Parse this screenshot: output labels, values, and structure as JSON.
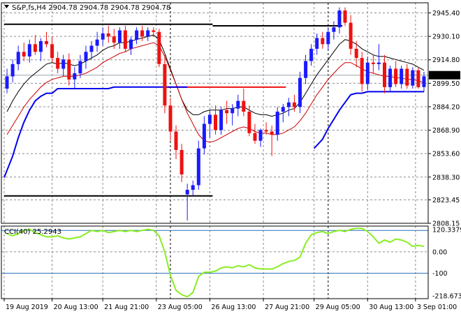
{
  "header": {
    "title": "S&P,fs,H4  2904.78 2904.78 2904.78 2904.78"
  },
  "cci_header": {
    "title": "CCI(40) 25.2943"
  },
  "colors": {
    "bull": "#1a1aff",
    "bear": "#ee1111",
    "grid": "#8c8c8c",
    "upper_ma": "#000000",
    "lower_ma": "#cc0000",
    "support": "#0000ee",
    "cci_line": "#88ee22",
    "cci_levels": "#2a6fb8",
    "hline_black": "#000000",
    "hline_red": "#ee1111"
  },
  "chart_data": [
    {
      "type": "candlestick",
      "title": "S&P,fs,H4  2904.78 2904.78 2904.78 2904.78",
      "ylim": [
        2808.15,
        2952.0
      ],
      "y_ticks": [
        "2945.40",
        "2930.10",
        "2914.80",
        "2899.50",
        "2884.20",
        "2868.90",
        "2853.60",
        "2838.30",
        "2823.45",
        "2808.15"
      ],
      "x_ticks": [
        "19 Aug 2019",
        "20 Aug 13:00",
        "21 Aug 21:00",
        "23 Aug 05:00",
        "26 Aug 13:00",
        "27 Aug 21:00",
        "29 Aug 05:00",
        "30 Aug 13:00",
        "3 Sep 01:00"
      ],
      "current_price": "2904.78",
      "grid": true,
      "candles": [
        [
          2896,
          2909,
          2893,
          2904
        ],
        [
          2904,
          2915,
          2900,
          2912
        ],
        [
          2912,
          2924,
          2908,
          2920
        ],
        [
          2920,
          2926,
          2914,
          2917
        ],
        [
          2917,
          2928,
          2913,
          2925
        ],
        [
          2925,
          2931,
          2918,
          2920
        ],
        [
          2920,
          2929,
          2914,
          2927
        ],
        [
          2927,
          2933,
          2923,
          2925
        ],
        [
          2925,
          2930,
          2913,
          2916
        ],
        [
          2916,
          2920,
          2906,
          2909
        ],
        [
          2909,
          2918,
          2904,
          2915
        ],
        [
          2915,
          2919,
          2898,
          2902
        ],
        [
          2902,
          2910,
          2896,
          2906
        ],
        [
          2906,
          2918,
          2903,
          2914
        ],
        [
          2914,
          2924,
          2909,
          2920
        ],
        [
          2920,
          2927,
          2915,
          2924
        ],
        [
          2924,
          2933,
          2920,
          2928
        ],
        [
          2928,
          2936,
          2924,
          2932
        ],
        [
          2932,
          2937,
          2926,
          2930
        ],
        [
          2930,
          2935,
          2922,
          2926
        ],
        [
          2926,
          2936,
          2922,
          2934
        ],
        [
          2934,
          2937,
          2920,
          2922
        ],
        [
          2922,
          2930,
          2918,
          2928
        ],
        [
          2928,
          2936,
          2925,
          2934
        ],
        [
          2934,
          2937,
          2927,
          2930
        ],
        [
          2930,
          2936,
          2927,
          2934
        ],
        [
          2934,
          2936,
          2930,
          2933
        ],
        [
          2933,
          2935,
          2910,
          2912
        ],
        [
          2912,
          2918,
          2880,
          2885
        ],
        [
          2885,
          2890,
          2862,
          2868
        ],
        [
          2868,
          2872,
          2850,
          2856
        ],
        [
          2856,
          2860,
          2835,
          2840
        ],
        [
          2827,
          2834,
          2810,
          2830
        ],
        [
          2830,
          2836,
          2826,
          2833
        ],
        [
          2833,
          2862,
          2830,
          2857
        ],
        [
          2857,
          2878,
          2853,
          2873
        ],
        [
          2873,
          2882,
          2864,
          2879
        ],
        [
          2879,
          2885,
          2866,
          2869
        ],
        [
          2869,
          2884,
          2866,
          2882
        ],
        [
          2882,
          2888,
          2873,
          2880
        ],
        [
          2880,
          2886,
          2872,
          2883
        ],
        [
          2883,
          2892,
          2878,
          2888
        ],
        [
          2888,
          2896,
          2878,
          2881
        ],
        [
          2881,
          2885,
          2865,
          2867
        ],
        [
          2867,
          2873,
          2860,
          2862
        ],
        [
          2862,
          2870,
          2858,
          2869
        ],
        [
          2869,
          2874,
          2866,
          2868
        ],
        [
          2868,
          2872,
          2852,
          2866
        ],
        [
          2866,
          2884,
          2862,
          2881
        ],
        [
          2881,
          2886,
          2874,
          2884
        ],
        [
          2884,
          2890,
          2878,
          2887
        ],
        [
          2887,
          2892,
          2881,
          2884
        ],
        [
          2884,
          2907,
          2880,
          2903
        ],
        [
          2903,
          2918,
          2899,
          2914
        ],
        [
          2914,
          2925,
          2911,
          2922
        ],
        [
          2922,
          2932,
          2918,
          2929
        ],
        [
          2929,
          2933,
          2922,
          2925
        ],
        [
          2925,
          2936,
          2921,
          2933
        ],
        [
          2933,
          2940,
          2928,
          2936
        ],
        [
          2936,
          2949,
          2932,
          2947
        ],
        [
          2947,
          2949,
          2937,
          2939
        ],
        [
          2939,
          2944,
          2918,
          2922
        ],
        [
          2922,
          2927,
          2910,
          2916
        ],
        [
          2916,
          2920,
          2894,
          2899
        ],
        [
          2899,
          2917,
          2895,
          2913
        ],
        [
          2913,
          2918,
          2906,
          2912
        ],
        [
          2912,
          2925,
          2908,
          2913
        ],
        [
          2913,
          2918,
          2893,
          2897
        ],
        [
          2897,
          2911,
          2894,
          2909
        ],
        [
          2909,
          2914,
          2897,
          2899
        ],
        [
          2899,
          2911,
          2896,
          2909
        ],
        [
          2909,
          2912,
          2896,
          2898
        ],
        [
          2898,
          2910,
          2896,
          2908
        ],
        [
          2908,
          2910,
          2896,
          2897
        ],
        [
          2897,
          2907,
          2894,
          2904
        ]
      ],
      "upper_line": [
        2881,
        2888,
        2894,
        2899,
        2903,
        2906,
        2909,
        2912,
        2913,
        2912,
        2913,
        2912,
        2911,
        2912,
        2914,
        2916,
        2918,
        2921,
        2923,
        2924,
        2926,
        2926,
        2927,
        2928,
        2929,
        2930,
        2931,
        2928,
        2919,
        2909,
        2899,
        2889,
        2882,
        2879,
        2879,
        2881,
        2882,
        2882,
        2882,
        2883,
        2883,
        2884,
        2884,
        2882,
        2880,
        2879,
        2879,
        2878,
        2879,
        2880,
        2882,
        2883,
        2887,
        2893,
        2899,
        2905,
        2910,
        2915,
        2920,
        2925,
        2928,
        2927,
        2925,
        2922,
        2920,
        2918,
        2917,
        2917,
        2916,
        2915,
        2914,
        2913,
        2912,
        2910,
        2908
      ],
      "lower_line": [
        2866,
        2872,
        2878,
        2884,
        2889,
        2893,
        2897,
        2900,
        2902,
        2903,
        2904,
        2904,
        2904,
        2905,
        2906,
        2908,
        2910,
        2913,
        2915,
        2917,
        2919,
        2920,
        2922,
        2923,
        2924,
        2925,
        2926,
        2924,
        2917,
        2908,
        2899,
        2889,
        2880,
        2873,
        2866,
        2862,
        2861,
        2862,
        2864,
        2866,
        2868,
        2870,
        2871,
        2870,
        2868,
        2867,
        2867,
        2866,
        2866,
        2867,
        2869,
        2871,
        2875,
        2880,
        2886,
        2892,
        2897,
        2902,
        2906,
        2910,
        2913,
        2913,
        2911,
        2909,
        2907,
        2906,
        2905,
        2904,
        2904,
        2903,
        2903,
        2902,
        2902,
        2901,
        2900
      ],
      "support_line": [
        2838,
        2852,
        2864,
        2874,
        2882,
        2888,
        2891,
        2893,
        2893,
        2896,
        2896,
        2896,
        2896,
        2896,
        2896,
        2896,
        2896,
        2896,
        2896,
        2897,
        2897,
        2897,
        2897,
        2897,
        2897,
        2897,
        2897,
        2897,
        2897,
        2897,
        2897,
        2897,
        2897,
        null,
        null,
        null,
        null,
        null,
        null,
        null,
        null,
        null,
        null,
        null,
        null,
        null,
        null,
        null,
        null,
        null,
        null,
        null,
        null,
        null,
        null,
        2857,
        2863,
        2870,
        2876,
        2882,
        2887,
        2892,
        2893,
        2893,
        2894,
        2894,
        2894,
        2894,
        2894,
        2894,
        2894,
        2894,
        2894,
        2894,
        2894
      ],
      "hlines": [
        {
          "price": 2938,
          "from": 0,
          "to": 37,
          "color": "#000000"
        },
        {
          "price": 2937,
          "from": 37,
          "to": 60,
          "color": "#000000"
        },
        {
          "price": 2826,
          "from": 0,
          "to": 37,
          "color": "#000000"
        },
        {
          "price": 2897,
          "from": 29,
          "to": 50,
          "color": "#ee1111"
        }
      ],
      "vlines": [
        29.5,
        57.5
      ]
    },
    {
      "type": "line",
      "title": "CCI(40) 25.2943",
      "ylim": [
        -218.6731,
        120.3379
      ],
      "y_ticks": [
        "120.3379",
        "0.00",
        "-100",
        "-218.6731"
      ],
      "levels": [
        100,
        -100
      ],
      "cci": [
        85,
        75,
        85,
        100,
        105,
        90,
        80,
        70,
        70,
        75,
        65,
        60,
        65,
        70,
        85,
        100,
        95,
        100,
        90,
        95,
        100,
        95,
        100,
        95,
        100,
        105,
        100,
        75,
        0,
        -110,
        -180,
        -200,
        -210,
        -190,
        -115,
        -95,
        -95,
        -90,
        -75,
        -70,
        -75,
        -65,
        -70,
        -60,
        -75,
        -80,
        -80,
        -80,
        -70,
        -55,
        -45,
        -40,
        -25,
        40,
        80,
        90,
        95,
        85,
        95,
        100,
        95,
        105,
        110,
        110,
        95,
        70,
        40,
        55,
        45,
        60,
        55,
        45,
        25,
        30,
        25
      ]
    }
  ]
}
